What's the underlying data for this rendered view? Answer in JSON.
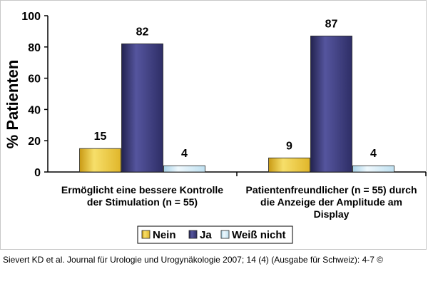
{
  "chart_data": {
    "type": "bar",
    "ylabel": "% Patienten",
    "ylim": [
      0,
      100
    ],
    "yticks": [
      0,
      20,
      40,
      60,
      80,
      100
    ],
    "categories": [
      [
        "Ermöglicht eine bessere Kontrolle",
        "der Stimulation (n = 55)"
      ],
      [
        "Patientenfreundlicher (n = 55) durch",
        "die Anzeige der Amplitude am",
        "Display"
      ]
    ],
    "series": [
      {
        "name": "Nein",
        "values": [
          15,
          9
        ],
        "color": "#f2cc3a"
      },
      {
        "name": "Ja",
        "values": [
          82,
          87
        ],
        "color": "#3a3a7c"
      },
      {
        "name": "Weiß nicht",
        "values": [
          4,
          4
        ],
        "color": "#cfe9f5"
      }
    ],
    "legend_position": "bottom",
    "grid": false
  },
  "citation": "Sievert KD et al. Journal für Urologie und Urogynäkologie 2007; 14 (4) (Ausgabe für Schweiz): 4-7 ©"
}
